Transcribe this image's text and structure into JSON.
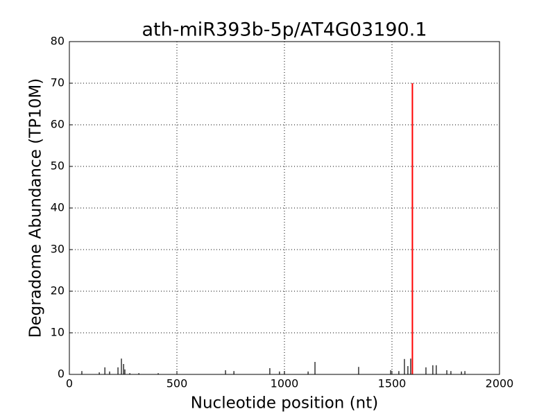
{
  "chart_data": {
    "type": "stem",
    "title": "ath-miR393b-5p/AT4G03190.1",
    "xlabel": "Nucleotide position (nt)",
    "ylabel": "Degradome Abundance (TP10M)",
    "series": [
      {
        "color": "#000000",
        "x": [
          58,
          139,
          165,
          187,
          226,
          242,
          252,
          258,
          281,
          323,
          413,
          726,
          765,
          932,
          977,
          1000,
          1110,
          1142,
          1345,
          1494,
          1532,
          1558,
          1574,
          1587,
          1658,
          1690,
          1706,
          1755,
          1774,
          1823,
          1839
        ],
        "values": [
          0.8,
          0.5,
          1.7,
          0.7,
          1.7,
          3.8,
          2.5,
          1.2,
          0.3,
          0.3,
          0.3,
          1,
          0.8,
          1.5,
          0.7,
          0.8,
          0.7,
          3,
          1.8,
          1,
          0.8,
          3.7,
          2,
          3.8,
          1.7,
          2.2,
          2.2,
          1,
          0.8,
          0.7,
          0.8
        ]
      },
      {
        "color": "#ff0000",
        "x": [
          1595
        ],
        "values": [
          70
        ]
      }
    ],
    "xlim": [
      0,
      2000
    ],
    "xticks": [
      0,
      500,
      1000,
      1500,
      2000
    ],
    "ylim": [
      0,
      80
    ],
    "yticks": [
      0,
      10,
      20,
      30,
      40,
      50,
      60,
      70,
      80
    ],
    "grid": true
  }
}
